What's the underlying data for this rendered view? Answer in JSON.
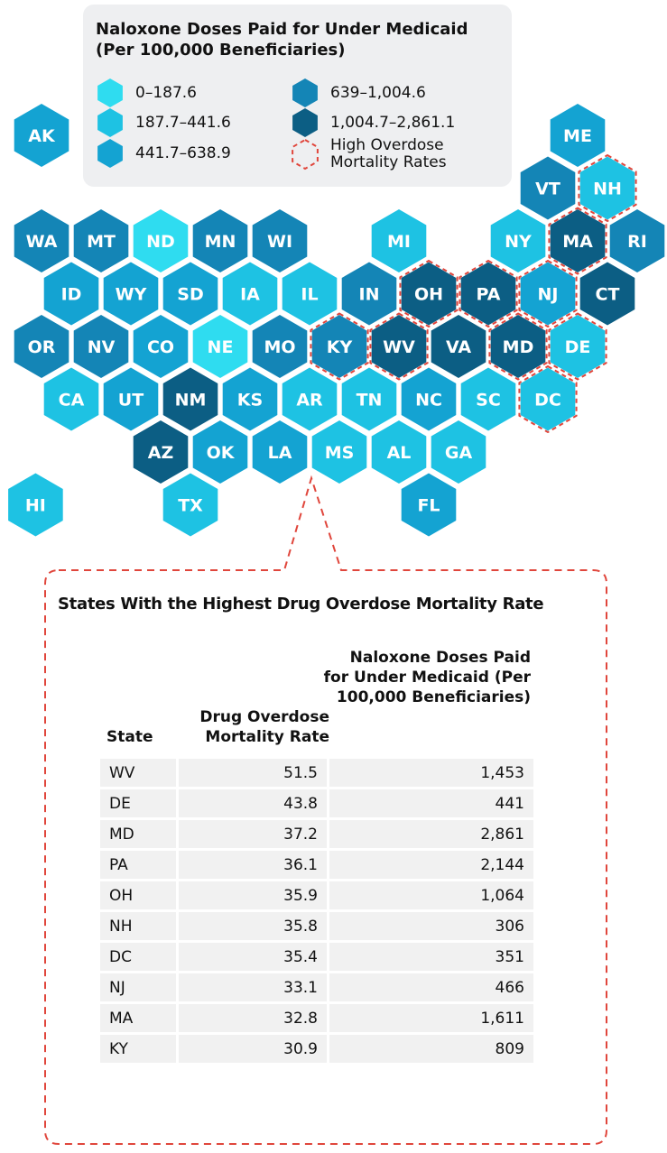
{
  "legend": {
    "title": "Naloxone Doses Paid for Under Medicaid (Per 100,000 Beneficiaries)",
    "items": [
      {
        "label": "0–187.6",
        "color": "#2fdcf0"
      },
      {
        "label": "187.7–441.6",
        "color": "#1ec2e3"
      },
      {
        "label": "441.7–638.9",
        "color": "#14a3d2"
      },
      {
        "label": "639–1,004.6",
        "color": "#1485b6"
      },
      {
        "label": "1,004.7–2,861.1",
        "color": "#0c5e84"
      }
    ],
    "high_label": "High Overdose Mortality Rates",
    "high_color": "#e0463c"
  },
  "hexes": [
    {
      "label": "AK",
      "class": 2,
      "high": false
    },
    {
      "label": "ME",
      "class": 2,
      "high": false
    },
    {
      "label": "VT",
      "class": 3,
      "high": false
    },
    {
      "label": "NH",
      "class": 1,
      "high": true
    },
    {
      "label": "WA",
      "class": 3,
      "high": false
    },
    {
      "label": "MT",
      "class": 3,
      "high": false
    },
    {
      "label": "ND",
      "class": 0,
      "high": false
    },
    {
      "label": "MN",
      "class": 3,
      "high": false
    },
    {
      "label": "WI",
      "class": 3,
      "high": false
    },
    {
      "label": "MI",
      "class": 1,
      "high": false
    },
    {
      "label": "NY",
      "class": 1,
      "high": false
    },
    {
      "label": "MA",
      "class": 4,
      "high": true
    },
    {
      "label": "RI",
      "class": 3,
      "high": false
    },
    {
      "label": "ID",
      "class": 2,
      "high": false
    },
    {
      "label": "WY",
      "class": 2,
      "high": false
    },
    {
      "label": "SD",
      "class": 2,
      "high": false
    },
    {
      "label": "IA",
      "class": 1,
      "high": false
    },
    {
      "label": "IL",
      "class": 1,
      "high": false
    },
    {
      "label": "IN",
      "class": 3,
      "high": false
    },
    {
      "label": "OH",
      "class": 4,
      "high": true
    },
    {
      "label": "PA",
      "class": 4,
      "high": true
    },
    {
      "label": "NJ",
      "class": 2,
      "high": true
    },
    {
      "label": "CT",
      "class": 4,
      "high": false
    },
    {
      "label": "OR",
      "class": 3,
      "high": false
    },
    {
      "label": "NV",
      "class": 3,
      "high": false
    },
    {
      "label": "CO",
      "class": 2,
      "high": false
    },
    {
      "label": "NE",
      "class": 0,
      "high": false
    },
    {
      "label": "MO",
      "class": 3,
      "high": false
    },
    {
      "label": "KY",
      "class": 3,
      "high": true
    },
    {
      "label": "WV",
      "class": 4,
      "high": true
    },
    {
      "label": "VA",
      "class": 4,
      "high": false
    },
    {
      "label": "MD",
      "class": 4,
      "high": true
    },
    {
      "label": "DE",
      "class": 1,
      "high": true
    },
    {
      "label": "CA",
      "class": 1,
      "high": false
    },
    {
      "label": "UT",
      "class": 2,
      "high": false
    },
    {
      "label": "NM",
      "class": 4,
      "high": false
    },
    {
      "label": "KS",
      "class": 2,
      "high": false
    },
    {
      "label": "AR",
      "class": 1,
      "high": false
    },
    {
      "label": "TN",
      "class": 1,
      "high": false
    },
    {
      "label": "NC",
      "class": 2,
      "high": false
    },
    {
      "label": "SC",
      "class": 1,
      "high": false
    },
    {
      "label": "DC",
      "class": 1,
      "high": true
    },
    {
      "label": "AZ",
      "class": 4,
      "high": false
    },
    {
      "label": "OK",
      "class": 2,
      "high": false
    },
    {
      "label": "LA",
      "class": 2,
      "high": false
    },
    {
      "label": "MS",
      "class": 1,
      "high": false
    },
    {
      "label": "AL",
      "class": 1,
      "high": false
    },
    {
      "label": "GA",
      "class": 1,
      "high": false
    },
    {
      "label": "HI",
      "class": 1,
      "high": false
    },
    {
      "label": "TX",
      "class": 1,
      "high": false
    },
    {
      "label": "FL",
      "class": 2,
      "high": false
    }
  ],
  "table": {
    "title": "States With the Highest Drug Overdose Mortality Rate",
    "headers": [
      "State",
      "Drug Overdose Mortality Rate",
      "Naloxone Doses Paid for Under Medicaid (Per 100,000 Beneficiaries)"
    ],
    "rows": [
      [
        "WV",
        "51.5",
        "1,453"
      ],
      [
        "DE",
        "43.8",
        "441"
      ],
      [
        "MD",
        "37.2",
        "2,861"
      ],
      [
        "PA",
        "36.1",
        "2,144"
      ],
      [
        "OH",
        "35.9",
        "1,064"
      ],
      [
        "NH",
        "35.8",
        "306"
      ],
      [
        "DC",
        "35.4",
        "351"
      ],
      [
        "NJ",
        "33.1",
        "466"
      ],
      [
        "MA",
        "32.8",
        "1,611"
      ],
      [
        "KY",
        "30.9",
        "809"
      ]
    ]
  }
}
